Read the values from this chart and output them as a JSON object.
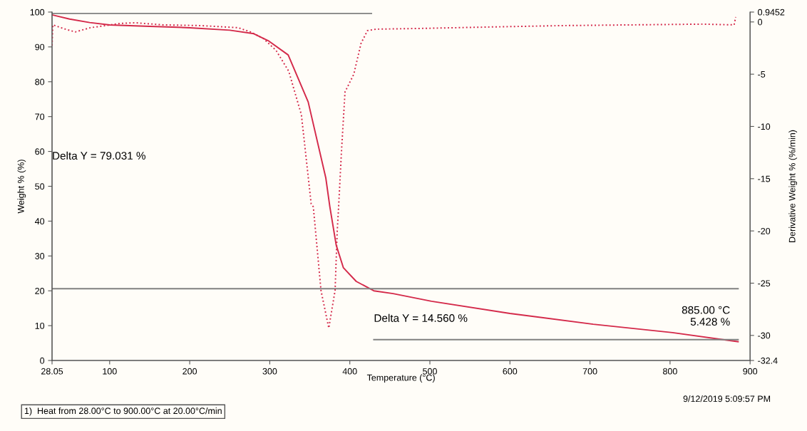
{
  "chart_data": {
    "type": "line",
    "xlabel": "Temperature (°C)",
    "ylabel": "Weight % (%)",
    "y2label": "Derivative Weight % (%/min)",
    "xlim": [
      28.05,
      900
    ],
    "xticks": [
      28.05,
      100,
      200,
      300,
      400,
      500,
      600,
      700,
      800,
      900
    ],
    "ylim": [
      0,
      100
    ],
    "yticks": [
      0,
      10,
      20,
      30,
      40,
      50,
      60,
      70,
      80,
      90,
      100
    ],
    "y2lim": [
      -32.4,
      0.9452
    ],
    "y2ticks": [
      -32.4,
      -30,
      -25,
      -20,
      -15,
      -10,
      -5,
      0,
      0.9452
    ],
    "grid": false,
    "legend": false,
    "series": [
      {
        "color": "#d42a4a",
        "line_style": "solid",
        "x": [
          28.05,
          50,
          75,
          100,
          150,
          200,
          250,
          280,
          298,
          323,
          348,
          370,
          375,
          383,
          392,
          408,
          430,
          454,
          502,
          600,
          704,
          803,
          885
        ],
        "values": [
          99.2,
          98.0,
          97.0,
          96.3,
          95.9,
          95.5,
          94.8,
          93.8,
          91.8,
          87.7,
          74.2,
          52.4,
          44.2,
          33.1,
          26.6,
          22.7,
          20.0,
          19.2,
          17.0,
          13.5,
          10.4,
          8.0,
          5.4
        ]
      },
      {
        "axis": "y2",
        "color": "#d42a4a",
        "line_style": "dotted",
        "x": [
          28.05,
          29,
          44.7,
          57,
          76,
          94.7,
          113,
          132.5,
          166.6,
          214,
          260.5,
          276,
          292,
          308,
          323.7,
          339.5,
          351.7,
          354.4,
          364,
          373.7,
          381.6,
          384.2,
          386,
          389.5,
          394,
          405,
          414,
          422,
          433,
          489,
          577,
          665,
          753,
          840,
          880,
          882
        ],
        "values": [
          -2.26,
          -0.28,
          -0.69,
          -0.96,
          -0.55,
          -0.35,
          -0.14,
          -0.08,
          -0.28,
          -0.35,
          -0.55,
          -0.96,
          -1.58,
          -2.74,
          -4.72,
          -8.88,
          -17.4,
          -17.7,
          -25.7,
          -29.3,
          -25.7,
          -20.1,
          -17.7,
          -12.5,
          -6.7,
          -5.0,
          -2.05,
          -0.83,
          -0.69,
          -0.62,
          -0.48,
          -0.35,
          -0.28,
          -0.21,
          -0.28,
          0.47
        ]
      },
      {
        "color": "#808080",
        "line_style": "solid",
        "x": [
          28.05,
          427
        ],
        "values": [
          99.6,
          99.6
        ]
      },
      {
        "color": "#808080",
        "line_style": "solid",
        "x": [
          28.05,
          885
        ],
        "values": [
          20.6,
          20.6
        ]
      },
      {
        "color": "#808080",
        "line_style": "solid",
        "x": [
          430,
          885
        ],
        "values": [
          6.0,
          6.0
        ]
      }
    ],
    "annotations": [
      "Delta Y = 79.031 %",
      "Delta Y = 14.560 %",
      {
        "text": "885.00 °C\n5.428 %",
        "x": 885,
        "y": 5.428
      },
      "9/12/2019 5:09:57 PM",
      "1)  Heat from 28.00°C to 900.00°C at 20.00°C/min"
    ]
  }
}
